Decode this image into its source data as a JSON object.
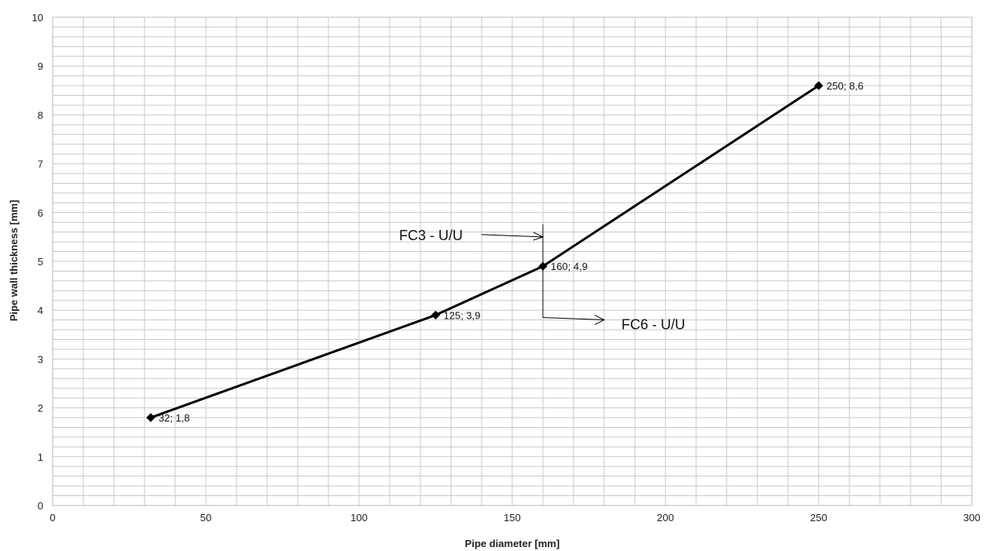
{
  "chart_data": {
    "type": "line",
    "title": "",
    "xlabel": "Pipe diameter  [mm]",
    "ylabel": "Pipe wall thickness [mm]",
    "xlim": [
      0,
      300
    ],
    "ylim": [
      0,
      10
    ],
    "x_ticks": [
      0,
      50,
      100,
      150,
      200,
      250,
      300
    ],
    "y_ticks": [
      0,
      1,
      2,
      3,
      4,
      5,
      6,
      7,
      8,
      9,
      10
    ],
    "x_minor_step": 10,
    "y_minor_step": 0.2,
    "grid": true,
    "legend": "none",
    "line_color": "#000000",
    "grid_color": "#c8c8c8",
    "series": [
      {
        "points": [
          {
            "x": 32,
            "y": 1.8,
            "label": "32; 1,8"
          },
          {
            "x": 125,
            "y": 3.9,
            "label": "125; 3,9"
          },
          {
            "x": 160,
            "y": 4.9,
            "label": "160; 4,9"
          },
          {
            "x": 250,
            "y": 8.6,
            "label": "250; 8,6"
          }
        ]
      }
    ],
    "annotations": [
      {
        "text": "FC3 - U/U",
        "marker_x": 160,
        "marker_y_top": 5.5,
        "marker_y_bottom": 3.85,
        "arrow_from_x": 140,
        "arrow_y": 5.5
      },
      {
        "text": "FC6 - U/U",
        "arrow_to_x": 180,
        "arrow_y": 3.85
      }
    ]
  }
}
